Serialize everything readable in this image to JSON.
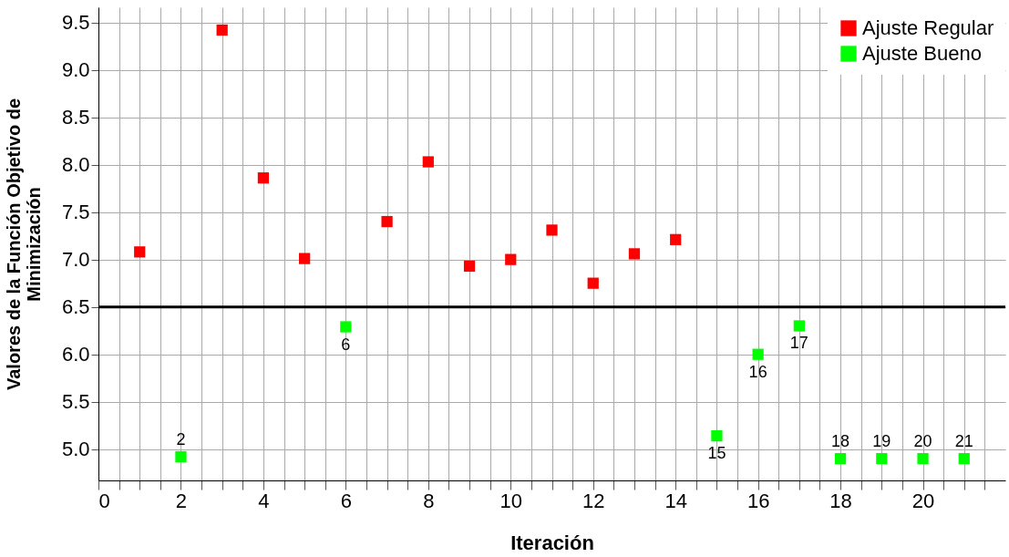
{
  "chart_data": {
    "type": "scatter",
    "xlabel": "Iteración",
    "ylabel": "Valores de la Función Objetivo de Minimización",
    "xlim": [
      0,
      22
    ],
    "ylim": [
      4.67,
      9.66
    ],
    "xticks": [
      0,
      {
        "value": 0.5,
        "label": null
      },
      {
        "value": 1,
        "label": null
      },
      {
        "value": 1.5,
        "label": null
      },
      2,
      {
        "value": 2.5,
        "label": null
      },
      {
        "value": 3,
        "label": null
      },
      {
        "value": 3.5,
        "label": null
      },
      4,
      {
        "value": 4.5,
        "label": null
      },
      {
        "value": 5,
        "label": null
      },
      {
        "value": 5.5,
        "label": null
      },
      6,
      {
        "value": 6.5,
        "label": null
      },
      {
        "value": 7,
        "label": null
      },
      {
        "value": 7.5,
        "label": null
      },
      8,
      {
        "value": 8.5,
        "label": null
      },
      {
        "value": 9,
        "label": null
      },
      {
        "value": 9.5,
        "label": null
      },
      10,
      {
        "value": 10.5,
        "label": null
      },
      {
        "value": 11,
        "label": null
      },
      {
        "value": 11.5,
        "label": null
      },
      12,
      {
        "value": 12.5,
        "label": null
      },
      {
        "value": 13,
        "label": null
      },
      {
        "value": 13.5,
        "label": null
      },
      14,
      {
        "value": 14.5,
        "label": null
      },
      {
        "value": 15,
        "label": null
      },
      {
        "value": 15.5,
        "label": null
      },
      16,
      {
        "value": 16.5,
        "label": null
      },
      {
        "value": 17,
        "label": null
      },
      {
        "value": 17.5,
        "label": null
      },
      18,
      {
        "value": 18.5,
        "label": null
      },
      {
        "value": 19,
        "label": null
      },
      {
        "value": 19.5,
        "label": null
      },
      20,
      {
        "value": 20.5,
        "label": null
      },
      {
        "value": 21,
        "label": null
      },
      {
        "value": 21.5,
        "label": null
      }
    ],
    "yticks": [
      {
        "value": 5,
        "label": "5.0"
      },
      5.5,
      {
        "value": 6,
        "label": "6.0"
      },
      6.5,
      {
        "value": 7,
        "label": "7.0"
      },
      7.5,
      {
        "value": 8,
        "label": "8.0"
      },
      8.5,
      {
        "value": 9,
        "label": "9.0"
      },
      9.5
    ],
    "grid": true,
    "legend": "top right",
    "marker": "square",
    "ref_lines": [
      {
        "axis": "y",
        "value": 6.5,
        "color": "#000000"
      }
    ],
    "series": [
      {
        "name": "Ajuste Regular",
        "color": "#ff0000",
        "x": [
          1,
          3,
          4,
          5,
          7,
          8,
          9,
          10,
          11,
          12,
          13,
          14
        ],
        "values": [
          7.08,
          9.42,
          7.86,
          7.01,
          7.4,
          8.03,
          6.93,
          7.0,
          7.31,
          6.75,
          7.06,
          7.21
        ]
      },
      {
        "name": "Ajuste Bueno",
        "color": "#00ff00",
        "x": [
          2,
          6,
          15,
          16,
          17,
          18,
          19,
          20,
          21
        ],
        "values": [
          4.92,
          6.29,
          5.14,
          6.0,
          6.3,
          4.9,
          4.9,
          4.9,
          4.9
        ]
      }
    ],
    "annotations": [
      {
        "text": "2",
        "x": 2,
        "y": 4.92
      },
      {
        "text": "6",
        "x": 6,
        "y": 6.29
      },
      {
        "text": "15",
        "x": 15,
        "y": 5.14
      },
      {
        "text": "16",
        "x": 16,
        "y": 6.0
      },
      {
        "text": "17",
        "x": 17,
        "y": 6.3
      },
      {
        "text": "18",
        "x": 18,
        "y": 4.9
      },
      {
        "text": "19",
        "x": 19,
        "y": 4.9
      },
      {
        "text": "20",
        "x": 20,
        "y": 4.9
      },
      {
        "text": "21",
        "x": 21,
        "y": 4.9
      }
    ]
  }
}
